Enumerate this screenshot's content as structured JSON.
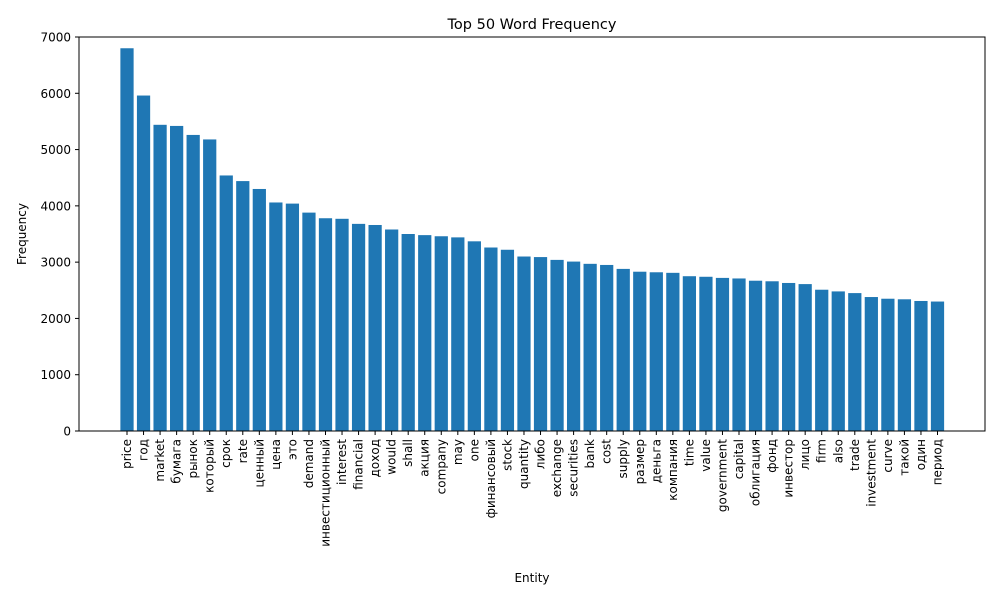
{
  "chart_data": {
    "type": "bar",
    "title": "Top 50 Word Frequency",
    "xlabel": "Entity",
    "ylabel": "Frequency",
    "ylim": [
      0,
      7000
    ],
    "yticks": [
      0,
      1000,
      2000,
      3000,
      4000,
      5000,
      6000,
      7000
    ],
    "grid": false,
    "legend": "none",
    "bar_color": "#1f77b4",
    "categories": [
      "price",
      "год",
      "market",
      "бумага",
      "рынок",
      "который",
      "срок",
      "rate",
      "ценный",
      "цена",
      "это",
      "demand",
      "инвестиционный",
      "interest",
      "financial",
      "доход",
      "would",
      "shall",
      "акция",
      "company",
      "may",
      "one",
      "финансовый",
      "stock",
      "quantity",
      "либо",
      "exchange",
      "securities",
      "bank",
      "cost",
      "supply",
      "размер",
      "деньга",
      "компания",
      "time",
      "value",
      "government",
      "capital",
      "облигация",
      "фонд",
      "инвестор",
      "лицо",
      "firm",
      "also",
      "trade",
      "investment",
      "curve",
      "такой",
      "один",
      "период"
    ],
    "values": [
      6800,
      5960,
      5440,
      5420,
      5260,
      5180,
      4540,
      4440,
      4300,
      4060,
      4040,
      3880,
      3780,
      3770,
      3680,
      3660,
      3580,
      3500,
      3480,
      3460,
      3440,
      3370,
      3260,
      3220,
      3100,
      3090,
      3040,
      3010,
      2970,
      2950,
      2880,
      2830,
      2820,
      2810,
      2750,
      2740,
      2720,
      2710,
      2670,
      2660,
      2630,
      2610,
      2510,
      2480,
      2450,
      2380,
      2350,
      2340,
      2310,
      2300
    ]
  }
}
